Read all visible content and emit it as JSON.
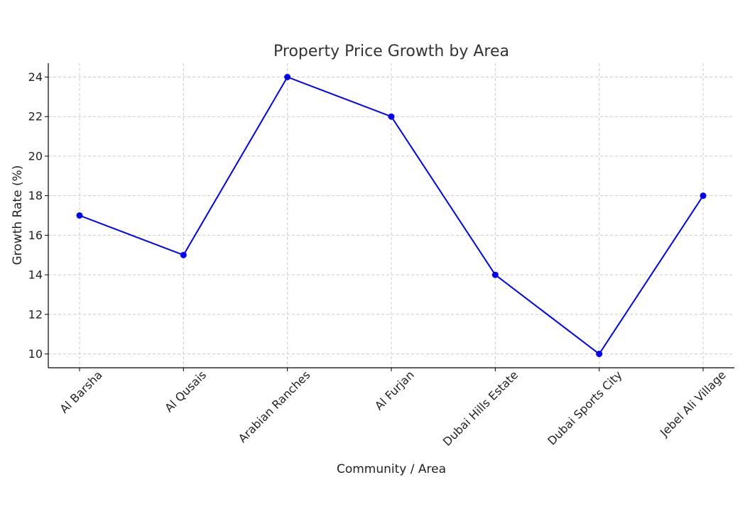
{
  "chart_data": {
    "type": "line",
    "title": "Property Price Growth by Area",
    "xlabel": "Community / Area",
    "ylabel": "Growth Rate (%)",
    "categories": [
      "Al Barsha",
      "Al Qusais",
      "Arabian Ranches",
      "Al Furjan",
      "Dubai Hills Estate",
      "Dubai Sports City",
      "Jebel Ali Village"
    ],
    "series": [
      {
        "values": [
          17,
          15,
          24,
          22,
          14,
          10,
          18
        ]
      }
    ],
    "ylim": [
      9.3,
      24.7
    ],
    "yticks": [
      "10",
      "12",
      "14",
      "16",
      "18",
      "20",
      "22",
      "24"
    ],
    "grid": true,
    "marker": "circle",
    "line_color": "#0000ff"
  }
}
